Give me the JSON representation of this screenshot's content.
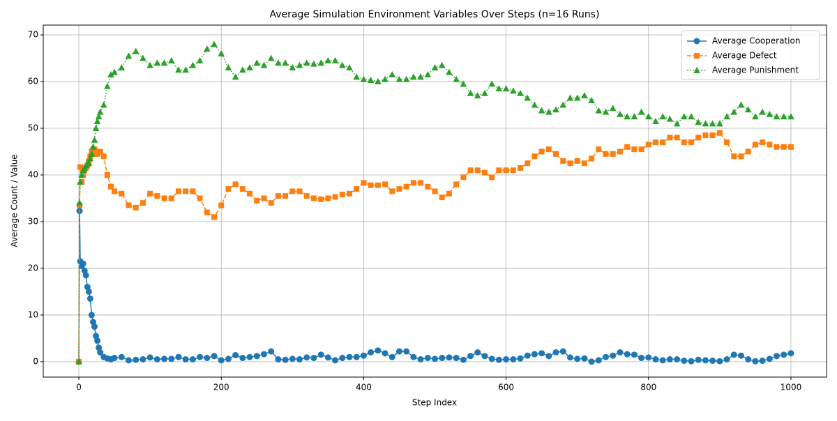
{
  "chart_data": {
    "type": "line",
    "title": "Average Simulation Environment Variables Over Steps (n=16 Runs)",
    "xlabel": "Step Index",
    "ylabel": "Average Count / Value",
    "x": [
      0,
      1,
      2,
      4,
      6,
      8,
      10,
      12,
      14,
      16,
      18,
      20,
      22,
      24,
      26,
      28,
      30,
      35,
      40,
      45,
      50,
      60,
      70,
      80,
      90,
      100,
      110,
      120,
      130,
      140,
      150,
      160,
      170,
      180,
      190,
      200,
      210,
      220,
      230,
      240,
      250,
      260,
      270,
      280,
      290,
      300,
      310,
      320,
      330,
      340,
      350,
      360,
      370,
      380,
      390,
      400,
      410,
      420,
      430,
      440,
      450,
      460,
      470,
      480,
      490,
      500,
      510,
      520,
      530,
      540,
      550,
      560,
      570,
      580,
      590,
      600,
      610,
      620,
      630,
      640,
      650,
      660,
      670,
      680,
      690,
      700,
      710,
      720,
      730,
      740,
      750,
      760,
      770,
      780,
      790,
      800,
      810,
      820,
      830,
      840,
      850,
      860,
      870,
      880,
      890,
      900,
      910,
      920,
      930,
      940,
      950,
      960,
      970,
      980,
      990,
      1000
    ],
    "series": [
      {
        "name": "Average Cooperation",
        "color": "#1f77b4",
        "linestyle": "solid",
        "marker": "circle",
        "values": [
          0,
          32.3,
          21.5,
          20.5,
          21,
          19.5,
          18.5,
          16,
          15,
          13.5,
          10,
          8.5,
          7.5,
          5.5,
          4.5,
          3,
          2,
          1,
          0.7,
          0.5,
          0.8,
          1.0,
          0.3,
          0.4,
          0.5,
          0.9,
          0.5,
          0.6,
          0.6,
          1.0,
          0.5,
          0.5,
          1.0,
          0.8,
          1.2,
          0.3,
          0.6,
          1.4,
          0.8,
          1.0,
          1.2,
          1.6,
          2.2,
          0.5,
          0.4,
          0.6,
          0.5,
          0.9,
          0.8,
          1.5,
          0.9,
          0.3,
          0.8,
          1.0,
          1.0,
          1.3,
          2.0,
          2.4,
          1.8,
          1.0,
          2.2,
          2.2,
          1.0,
          0.5,
          0.8,
          0.6,
          0.8,
          0.9,
          0.8,
          0.4,
          1.2,
          2.0,
          1.2,
          0.6,
          0.4,
          0.5,
          0.5,
          0.7,
          1.3,
          1.6,
          1.8,
          1.2,
          2.0,
          2.2,
          0.9,
          0.6,
          0.7,
          0.0,
          0.3,
          1.0,
          1.3,
          2.0,
          1.6,
          1.5,
          0.8,
          0.9,
          0.5,
          0.3,
          0.5,
          0.5,
          0.2,
          0.1,
          0.4,
          0.3,
          0.2,
          0.1,
          0.5,
          1.5,
          1.3,
          0.5,
          0.1,
          0.2,
          0.6,
          1.2,
          1.5,
          1.8
        ]
      },
      {
        "name": "Average Defect",
        "color": "#ff7f0e",
        "linestyle": "dashed",
        "marker": "square",
        "values": [
          0,
          33.5,
          41.7,
          38.5,
          40,
          41,
          41.5,
          42,
          43,
          44,
          45,
          45.5,
          45.5,
          44.5,
          44.5,
          45,
          45,
          44,
          40,
          37.5,
          36.5,
          36,
          33.5,
          33,
          34,
          36,
          35.5,
          35,
          35,
          36.5,
          36.5,
          36.5,
          35,
          32,
          31,
          33.5,
          37,
          38,
          37,
          36,
          34.5,
          35,
          34,
          35.5,
          35.5,
          36.5,
          36.5,
          35.5,
          35,
          34.8,
          35,
          35.3,
          35.8,
          36,
          37,
          38.3,
          37.8,
          37.8,
          38,
          36.5,
          37,
          37.5,
          38.3,
          38.3,
          37.5,
          36.5,
          35.2,
          36,
          38,
          39.5,
          41,
          41,
          40.5,
          39.5,
          41,
          41,
          41,
          41.5,
          42.5,
          44,
          45,
          45.5,
          44.5,
          43,
          42.5,
          43,
          42.5,
          43.5,
          45.5,
          44.5,
          44.5,
          45,
          46,
          45.5,
          45.5,
          46.5,
          47,
          47,
          48,
          48,
          47,
          47,
          48,
          48.5,
          48.5,
          49,
          47,
          44,
          44,
          45,
          46.5,
          47,
          46.5,
          46,
          46,
          46
        ]
      },
      {
        "name": "Average Punishment",
        "color": "#2ca02c",
        "linestyle": "dotted",
        "marker": "triangle",
        "values": [
          0,
          34,
          38.5,
          40,
          41,
          41.5,
          42,
          42.5,
          42.5,
          43.5,
          44.5,
          46,
          47.5,
          50,
          51.5,
          52.5,
          53.5,
          55,
          59,
          61.5,
          62,
          63,
          65.5,
          66.5,
          65,
          63.5,
          64,
          64,
          64.5,
          62.5,
          62.5,
          63.5,
          64.5,
          67,
          68,
          66,
          63,
          61,
          62.5,
          63,
          64,
          63.5,
          65,
          64,
          64,
          63,
          63.5,
          64,
          63.8,
          64,
          64.5,
          64.5,
          63.5,
          63,
          61,
          60.5,
          60.3,
          60,
          60.5,
          61.5,
          60.5,
          60.5,
          61,
          61,
          61.5,
          63,
          63.5,
          62,
          60.5,
          59.5,
          57.5,
          57,
          57.5,
          59.5,
          58.5,
          58.5,
          58,
          57.5,
          56.5,
          55,
          53.8,
          53.5,
          54,
          55,
          56.5,
          56.5,
          57,
          56,
          53.8,
          53.5,
          54.3,
          53,
          52.5,
          52.5,
          53.5,
          52.5,
          51.5,
          52.5,
          52,
          51,
          52.5,
          52.5,
          51.3,
          51,
          51,
          51,
          52.5,
          53.5,
          55,
          54,
          52.5,
          53.5,
          53,
          52.5,
          52.5,
          52.5
        ]
      }
    ],
    "xlim": [
      -50,
      1050
    ],
    "ylim": [
      -3.3,
      72.1
    ],
    "xticks": [
      0,
      200,
      400,
      600,
      800,
      1000
    ],
    "yticks": [
      0,
      10,
      20,
      30,
      40,
      50,
      60,
      70
    ],
    "grid": true,
    "legend": "upper right"
  }
}
